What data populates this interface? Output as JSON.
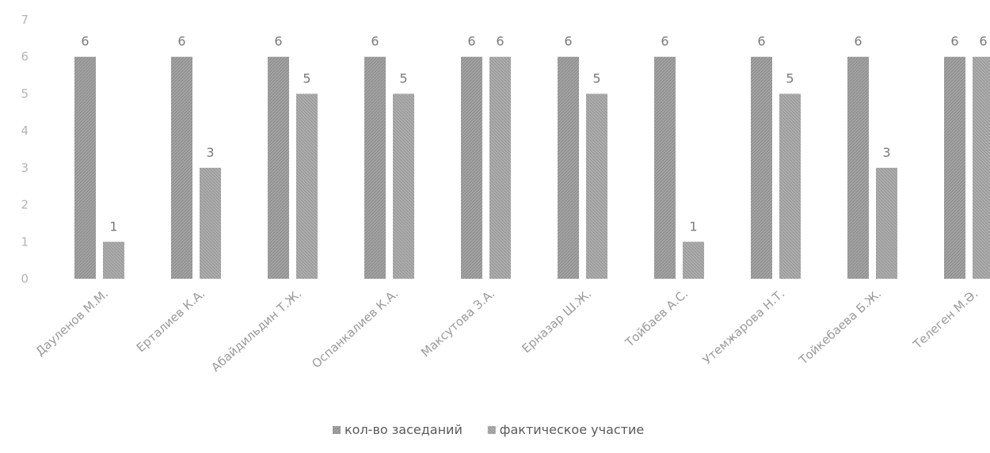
{
  "chart_data": {
    "type": "bar",
    "categories": [
      "Дауленов М.М.",
      "Ерталиев К.А.",
      "Абайдильдин Т.Ж.",
      "Оспанкалиев К.А.",
      "Максутова З.А.",
      "Ерназар Ш.Ж.",
      "Тойбаев А.С.",
      "Утемжарова Н.Т.",
      "Тойкебаева Б.Ж.",
      "Телеген М.Ә."
    ],
    "series": [
      {
        "name": "кол-во заседаний",
        "values": [
          6,
          6,
          6,
          6,
          6,
          6,
          6,
          6,
          6,
          6
        ]
      },
      {
        "name": "фактическое участие",
        "values": [
          1,
          3,
          5,
          5,
          6,
          5,
          1,
          5,
          3,
          6
        ]
      }
    ],
    "ylim": [
      0,
      7
    ],
    "yticks": [
      0,
      1,
      2,
      3,
      4,
      5,
      6,
      7
    ],
    "grid": false,
    "legend": "bottom",
    "colors": {
      "series1": "#9d9d9d",
      "series2": "#a8a8a8",
      "text": "#9a9a9a",
      "label": "#7a7a7a"
    }
  }
}
